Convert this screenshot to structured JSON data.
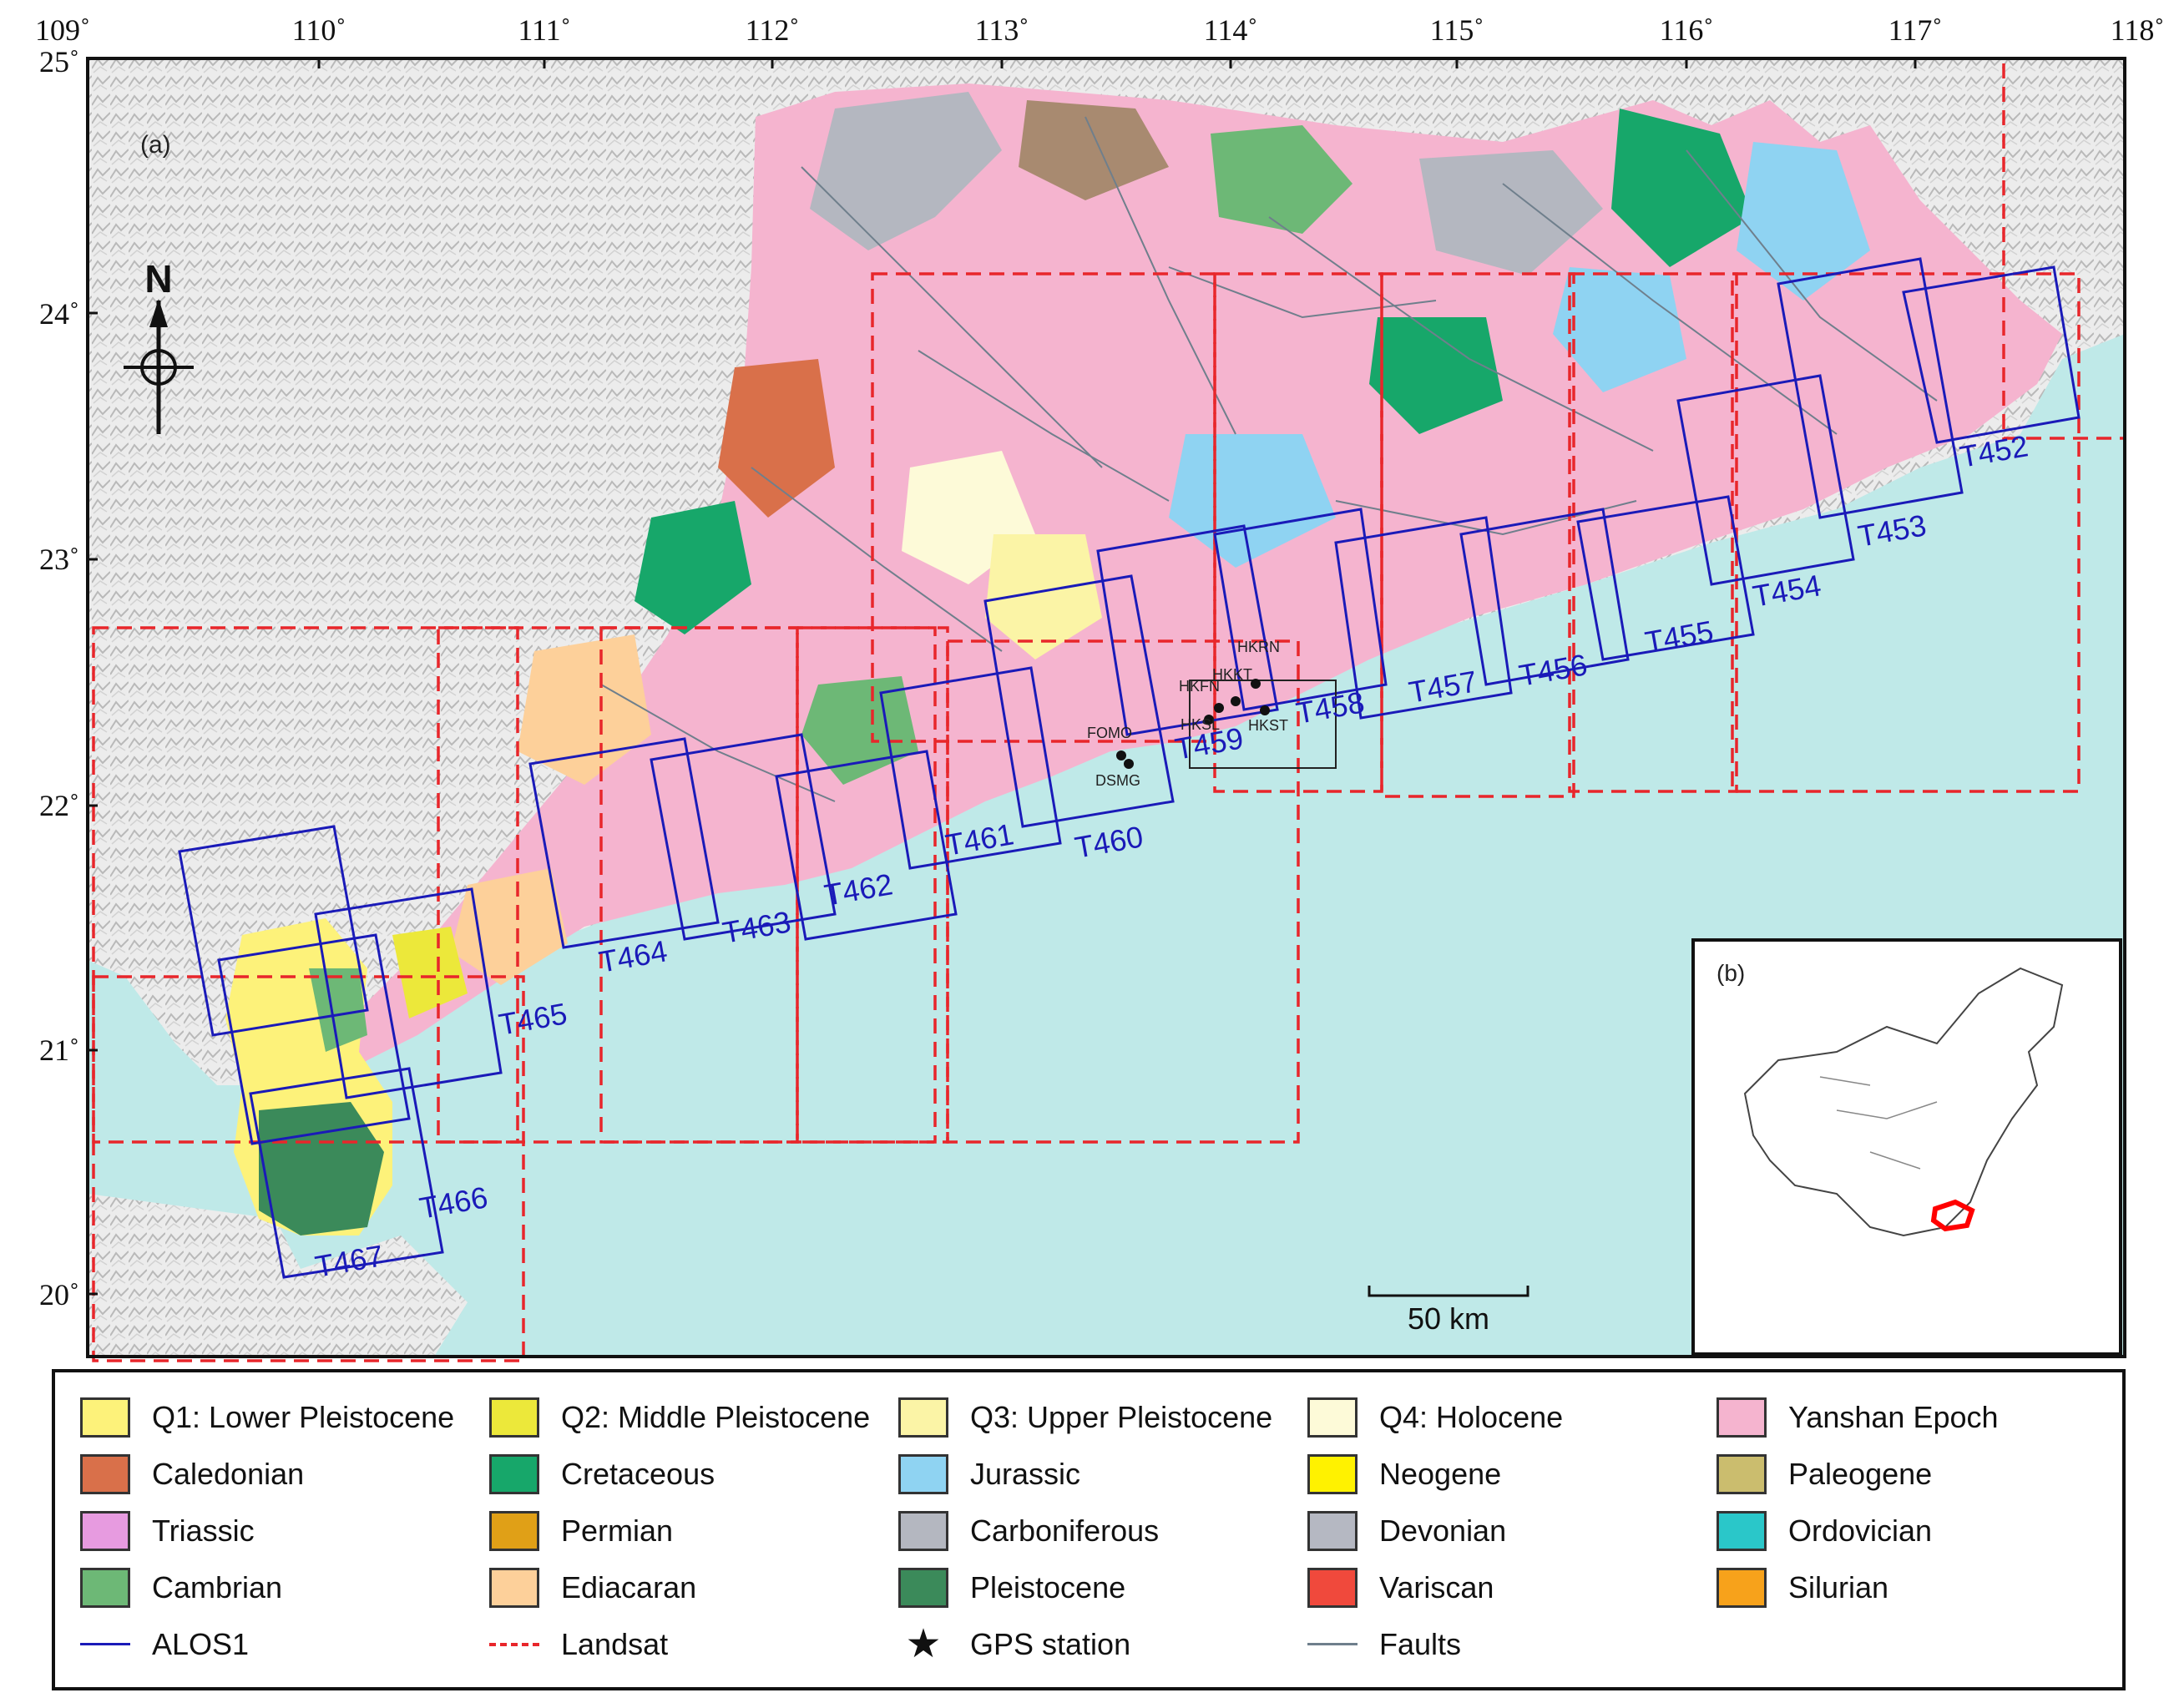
{
  "map": {
    "panel_a_label": "(a)",
    "panel_b_label": "(b)",
    "north_label": "N",
    "scale_label": "50 km",
    "top_ticks": [
      "109˚",
      "110˚",
      "111˚",
      "112˚",
      "113˚",
      "114˚",
      "115˚",
      "116˚",
      "117˚",
      "118˚"
    ],
    "left_ticks": [
      "25˚",
      "24˚",
      "23˚",
      "22˚",
      "21˚",
      "20˚"
    ],
    "stations": [
      "HKRN",
      "HKKT",
      "HKFN",
      "HKSL",
      "HKST",
      "FOMO",
      "DSMG"
    ],
    "tracks": [
      "T452",
      "T453",
      "T454",
      "T455",
      "T456",
      "T457",
      "T458",
      "T459",
      "T460",
      "T461",
      "T462",
      "T463",
      "T464",
      "T465",
      "T466",
      "T467"
    ],
    "colors": {
      "sea": "#bfe9e8",
      "alos": "#1a1ab8",
      "landsat": "#e8262b",
      "inset_highlight": "#ff0000"
    }
  },
  "legend": {
    "items": [
      {
        "label": "Q1: Lower Pleistocene",
        "color": "#fdf27a"
      },
      {
        "label": "Q2: Middle Pleistocene",
        "color": "#ece83a"
      },
      {
        "label": "Q3: Upper Pleistocene",
        "color": "#fbf4a6"
      },
      {
        "label": "Q4: Holocene",
        "color": "#fdfad8"
      },
      {
        "label": "Yanshan Epoch",
        "color": "#f5b4cf"
      },
      {
        "label": "Caledonian",
        "color": "#d9704a"
      },
      {
        "label": "Cretaceous",
        "color": "#17a76a"
      },
      {
        "label": "Jurassic",
        "color": "#8fd3f2"
      },
      {
        "label": "Neogene",
        "color": "#fff200"
      },
      {
        "label": "Paleogene",
        "color": "#cbbd6e"
      },
      {
        "label": "Triassic",
        "color": "#e79be0"
      },
      {
        "label": "Permian",
        "color": "#e0a017"
      },
      {
        "label": "Carboniferous",
        "color": "#b4b7c0"
      },
      {
        "label": "Devonian",
        "color": "#b5b8c2"
      },
      {
        "label": "Ordovician",
        "color": "#2ac7c9"
      },
      {
        "label": "Cambrian",
        "color": "#6db876"
      },
      {
        "label": "Ediacaran",
        "color": "#fdd09a"
      },
      {
        "label": "Pleistocene",
        "color": "#3b8a5a"
      },
      {
        "label": "Variscan",
        "color": "#f0493c"
      },
      {
        "label": "Silurian",
        "color": "#f7a21b"
      }
    ],
    "lines": [
      {
        "label": "ALOS1"
      },
      {
        "label": "Landsat"
      },
      {
        "label": "GPS station"
      },
      {
        "label": "Faults"
      }
    ]
  }
}
